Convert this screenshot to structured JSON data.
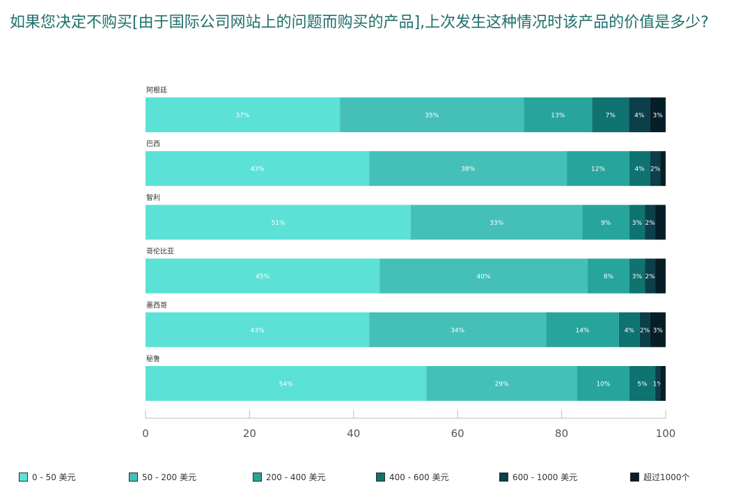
{
  "title": "如果您决定不购买[由于国际公司网站上的问题而购买的产品],上次发生这种情况时该产品的价值是多少?",
  "colors": [
    "#5ce1d6",
    "#44c0b8",
    "#27a59c",
    "#0f7371",
    "#0b3f4a",
    "#061f26"
  ],
  "chart_data": {
    "type": "bar",
    "orientation": "horizontal",
    "stacked": true,
    "categories": [
      "阿根廷",
      "巴西",
      "智利",
      "哥伦比亚",
      "墨西哥",
      "秘鲁"
    ],
    "series": [
      {
        "name": "0 - 50 美元",
        "values": [
          37,
          43,
          51,
          45,
          43,
          54
        ]
      },
      {
        "name": "50 - 200 美元",
        "values": [
          35,
          38,
          33,
          40,
          34,
          29
        ]
      },
      {
        "name": "200 - 400 美元",
        "values": [
          13,
          12,
          9,
          8,
          14,
          10
        ]
      },
      {
        "name": "400 - 600 美元",
        "values": [
          7,
          4,
          3,
          3,
          4,
          5
        ]
      },
      {
        "name": "600 - 1000 美元",
        "values": [
          4,
          2,
          2,
          2,
          2,
          1
        ]
      },
      {
        "name": "超过1000个",
        "values": [
          3,
          1,
          2,
          2,
          3,
          1
        ]
      }
    ],
    "data_labels": [
      [
        "37%",
        "35%",
        "13%",
        "7%",
        "4%",
        "3%"
      ],
      [
        "43%",
        "38%",
        "12%",
        "4%",
        "2%",
        ""
      ],
      [
        "51%",
        "33%",
        "9%",
        "3%",
        "2%",
        ""
      ],
      [
        "45%",
        "40%",
        "8%",
        "3%",
        "2%",
        ""
      ],
      [
        "43%",
        "34%",
        "14%",
        "4%",
        "2%",
        "3%"
      ],
      [
        "54%",
        "29%",
        "10%",
        "5%",
        "1%",
        ""
      ]
    ],
    "xlim": [
      0,
      100
    ],
    "xticks": [
      0,
      20,
      40,
      60,
      80,
      100
    ],
    "grid": false,
    "legend_position": "bottom"
  }
}
